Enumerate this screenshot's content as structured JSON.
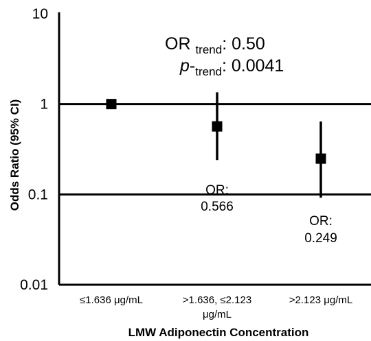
{
  "chart_data": {
    "type": "scatter",
    "xlabel": "LMW Adiponectin Concentration",
    "ylabel": "Odds Ratio (95% CI)",
    "yscale": "log",
    "ylim": [
      0.01,
      10
    ],
    "yticks": [
      "10",
      "1",
      "0.1",
      "0.01"
    ],
    "reference_lines_y": [
      1,
      0.1
    ],
    "categories": [
      [
        "≤1.636 μg/mL"
      ],
      [
        ">1.636, ≤2.123",
        "μg/mL"
      ],
      [
        ">2.123 μg/mL"
      ]
    ],
    "points": [
      {
        "or": 1.0,
        "ci_low": null,
        "ci_high": null,
        "label": null
      },
      {
        "or": 0.566,
        "ci_low": 0.24,
        "ci_high": 1.35,
        "label": [
          "OR:",
          "0.566"
        ]
      },
      {
        "or": 0.249,
        "ci_low": 0.092,
        "ci_high": 0.64,
        "label": [
          "OR:",
          "0.249"
        ]
      }
    ],
    "annotation": {
      "or_trend": {
        "prefix": "OR",
        "sub": "trend",
        "value": ": 0.50"
      },
      "p_trend": {
        "prefix": "p",
        "dash": "-",
        "sub": "trend",
        "value": ": 0.0041"
      }
    }
  }
}
